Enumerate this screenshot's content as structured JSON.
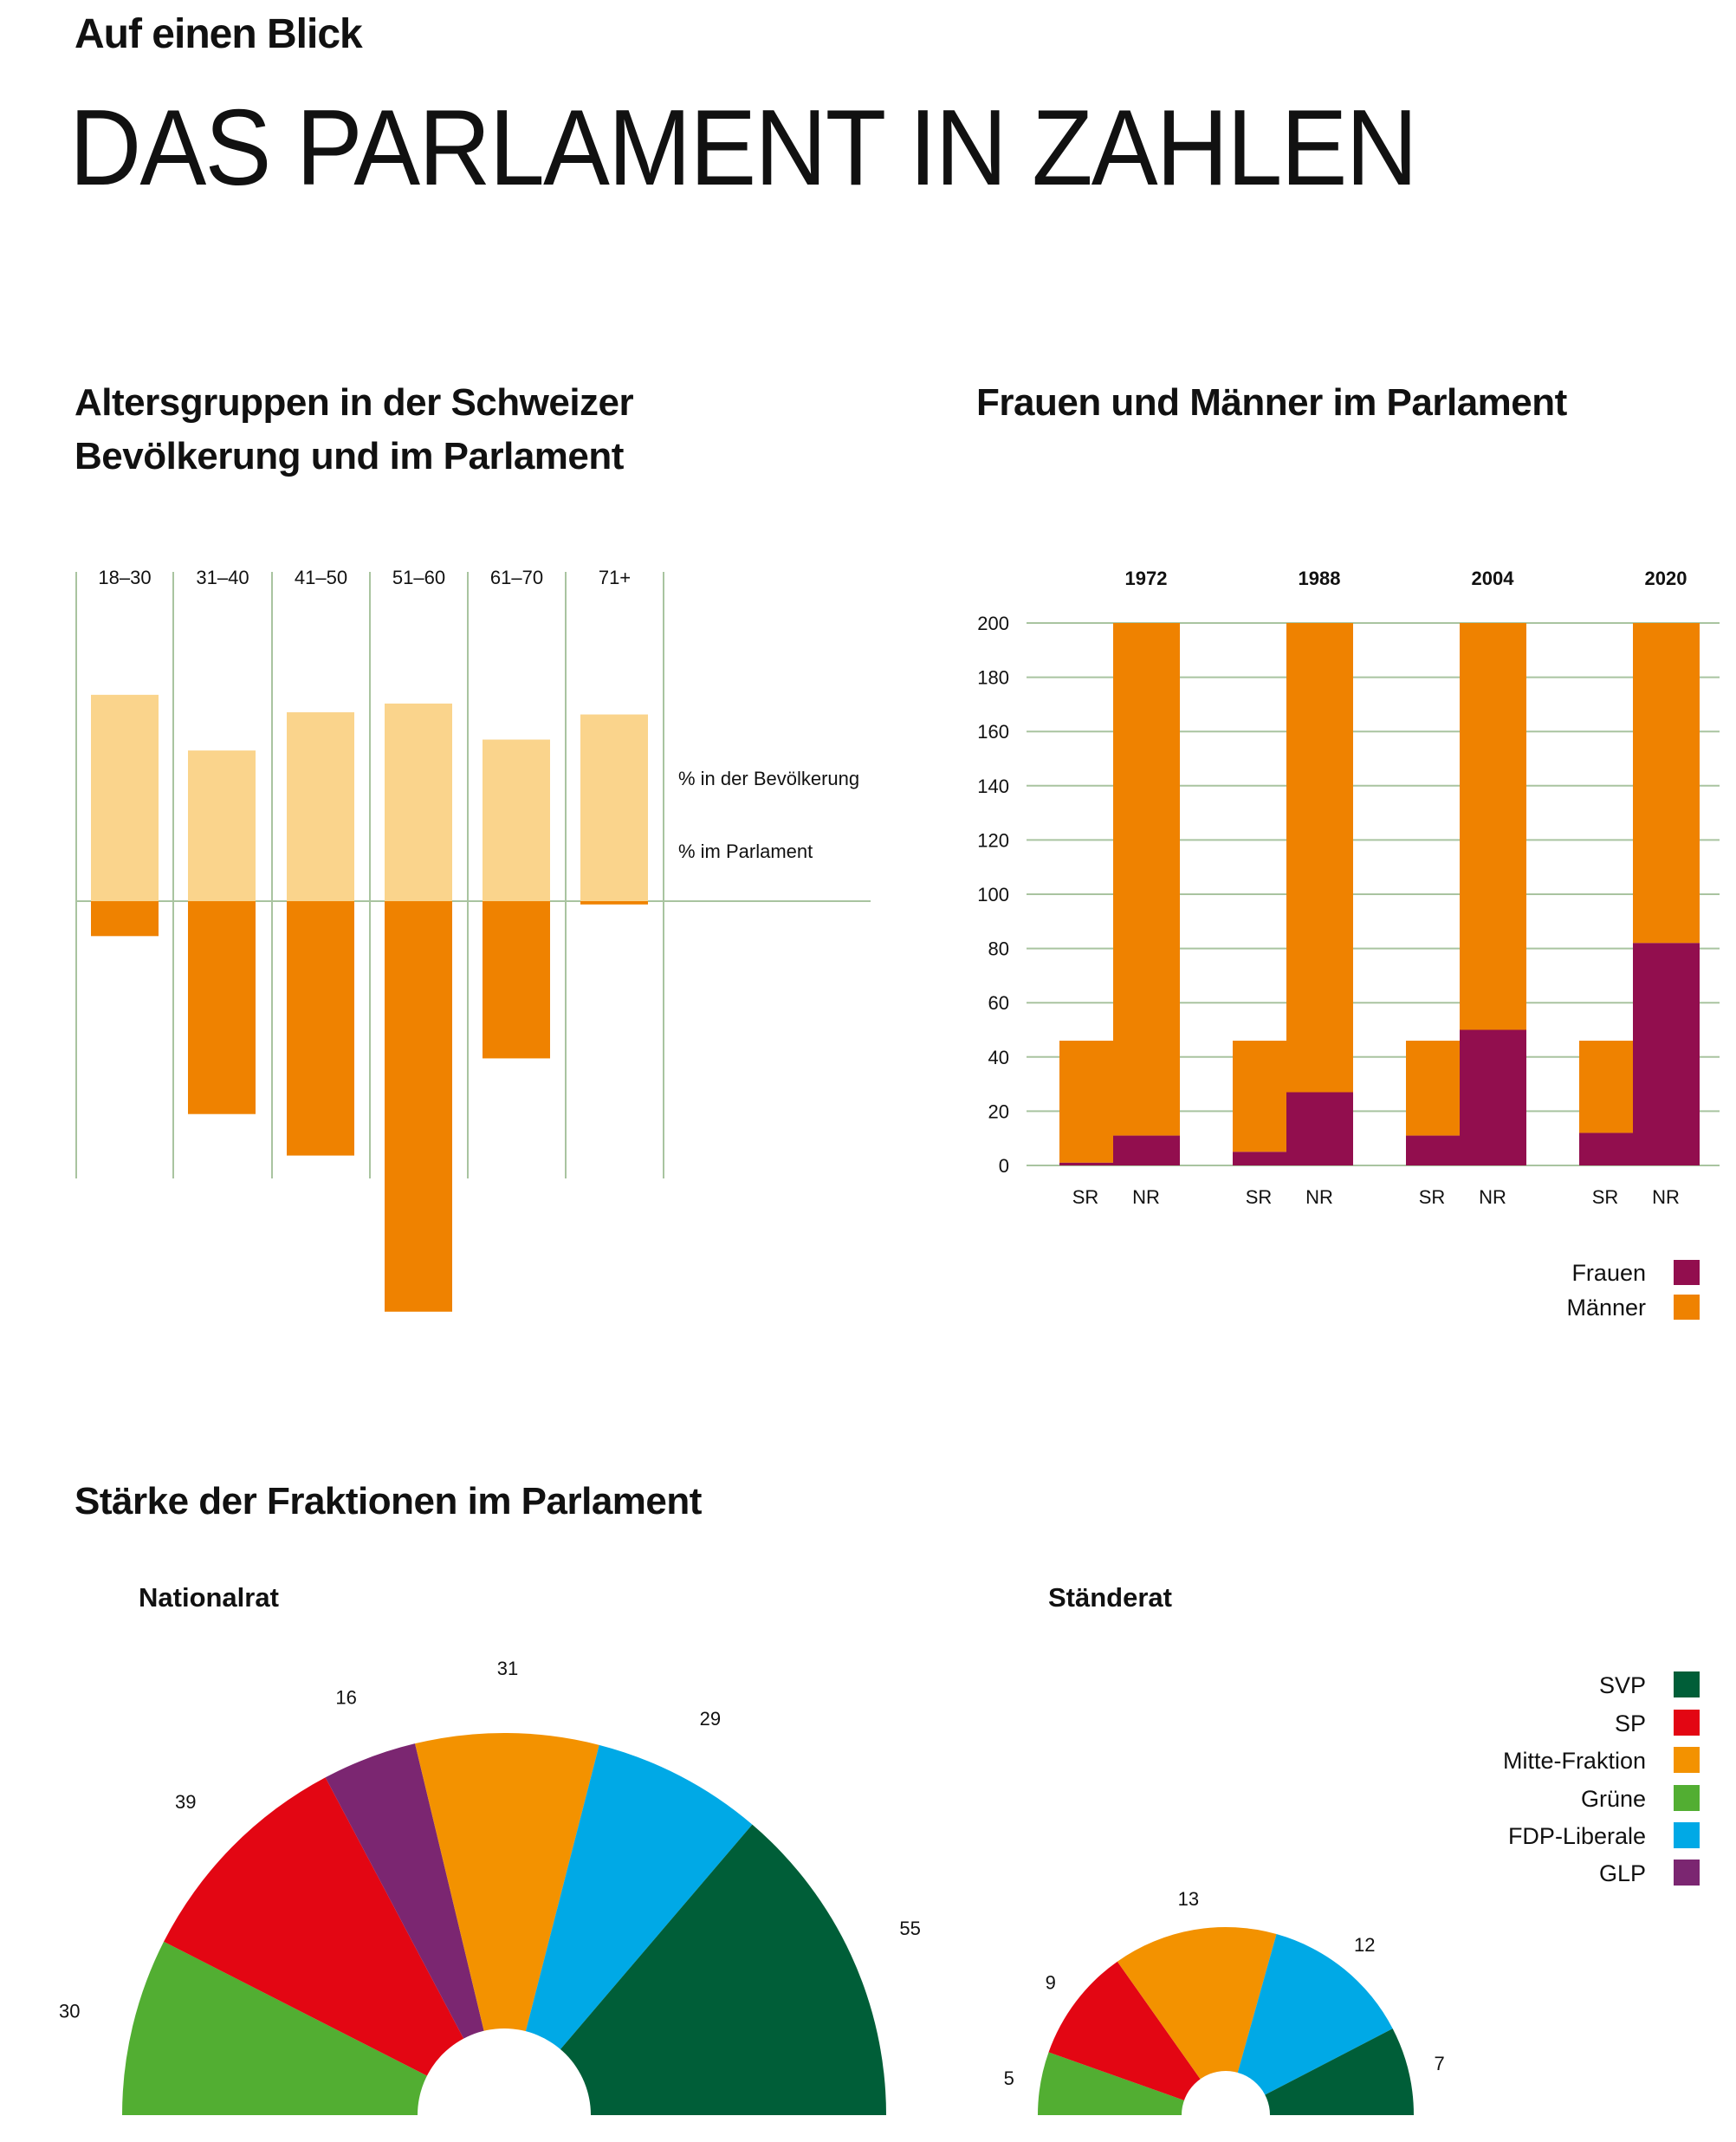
{
  "header": {
    "kicker": "Auf einen Blick",
    "title": "DAS PARLAMENT IN ZAHLEN"
  },
  "colors": {
    "population": "#fad48c",
    "parliament": "#ef8200",
    "frauen": "#920e4e",
    "maenner": "#ef8200",
    "grid": "#a9c4a0"
  },
  "chart_data": [
    {
      "type": "bar",
      "title_line1": "Altersgruppen in der Schweizer",
      "title_line2": "Bevölkerung und im Parlament",
      "categories": [
        "18–30",
        "31–40",
        "41–50",
        "51–60",
        "61–70",
        "71+"
      ],
      "series": [
        {
          "name": "% in der Bevölkerung",
          "values": [
            18.9,
            13.8,
            17.3,
            18.1,
            14.8,
            17.1
          ]
        },
        {
          "name": "% im Parlament",
          "values": [
            3.2,
            19.5,
            23.3,
            37.6,
            14.4,
            0.3
          ]
        }
      ],
      "unit": "%",
      "grid": true
    },
    {
      "type": "bar",
      "stacked": true,
      "title": "Frauen und Männer im Parlament",
      "groups": [
        "1972",
        "1988",
        "2004",
        "2020"
      ],
      "bar_labels": [
        "SR",
        "NR"
      ],
      "yticks": [
        "0",
        "20",
        "40",
        "60",
        "80",
        "100",
        "120",
        "140",
        "160",
        "180",
        "200"
      ],
      "ylim": [
        0,
        200
      ],
      "totals": {
        "SR": 46,
        "NR": 200
      },
      "series": [
        {
          "name": "Frauen",
          "SR": [
            1,
            5,
            11,
            12
          ],
          "NR": [
            11,
            27,
            50,
            82
          ]
        },
        {
          "name": "Männer",
          "SR": [
            45,
            41,
            35,
            34
          ],
          "NR": [
            189,
            173,
            150,
            118
          ]
        }
      ],
      "legend": [
        "Frauen",
        "Männer"
      ],
      "legend_position": "bottom-right",
      "grid": true
    },
    {
      "type": "pie",
      "variant": "semicircle",
      "section_title": "Stärke der Fraktionen im Parlament",
      "charts": [
        {
          "title": "Nationalrat",
          "slices": [
            {
              "party": "Grüne",
              "value": 30
            },
            {
              "party": "SP",
              "value": 39
            },
            {
              "party": "GLP",
              "value": 16
            },
            {
              "party": "Mitte-Fraktion",
              "value": 31
            },
            {
              "party": "FDP-Liberale",
              "value": 29
            },
            {
              "party": "SVP",
              "value": 55
            }
          ]
        },
        {
          "title": "Ständerat",
          "slices": [
            {
              "party": "Grüne",
              "value": 5
            },
            {
              "party": "SP",
              "value": 9
            },
            {
              "party": "Mitte-Fraktion",
              "value": 13
            },
            {
              "party": "FDP-Liberale",
              "value": 12
            },
            {
              "party": "SVP",
              "value": 7
            }
          ]
        }
      ],
      "legend": [
        {
          "party": "SVP",
          "color": "#005e38"
        },
        {
          "party": "SP",
          "color": "#e30613"
        },
        {
          "party": "Mitte-Fraktion",
          "color": "#f39200"
        },
        {
          "party": "Grüne",
          "color": "#52ae32"
        },
        {
          "party": "FDP-Liberale",
          "color": "#00a9e6"
        },
        {
          "party": "GLP",
          "color": "#7b2671"
        }
      ],
      "legend_position": "right"
    }
  ]
}
